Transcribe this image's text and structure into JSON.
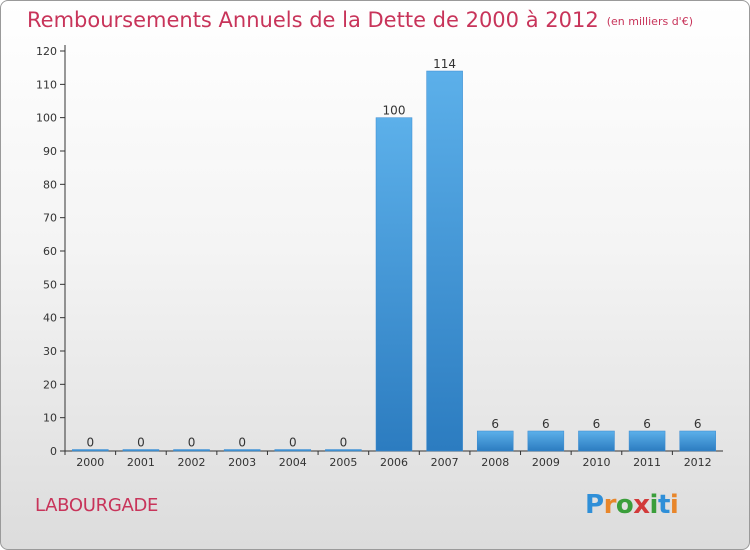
{
  "header": {
    "title": "Remboursements Annuels de la Dette de 2000 à 2012",
    "unit": "(en milliers d'€)"
  },
  "footer": {
    "commune": "LABOURGADE",
    "logo_text": "Proxiti"
  },
  "colors": {
    "title": "#c8345a",
    "bar_top": "#5cb0ea",
    "bar_bottom": "#2c7cc0",
    "axis": "#333333"
  },
  "chart_data": {
    "type": "bar",
    "title": "Remboursements Annuels de la Dette de 2000 à 2012",
    "subtitle": "(en milliers d'€)",
    "xlabel": "",
    "ylabel": "",
    "categories": [
      "2000",
      "2001",
      "2002",
      "2003",
      "2004",
      "2005",
      "2006",
      "2007",
      "2008",
      "2009",
      "2010",
      "2011",
      "2012"
    ],
    "values": [
      0,
      0,
      0,
      0,
      0,
      0,
      100,
      114,
      6,
      6,
      6,
      6,
      6
    ],
    "data_labels": [
      "0",
      "0",
      "0",
      "0",
      "0",
      "0",
      "100",
      "114",
      "6",
      "6",
      "6",
      "6",
      "6"
    ],
    "ylim": [
      0,
      120
    ],
    "yticks": [
      0,
      10,
      20,
      30,
      40,
      50,
      60,
      70,
      80,
      90,
      100,
      110,
      120
    ],
    "grid": false,
    "legend": "none"
  }
}
